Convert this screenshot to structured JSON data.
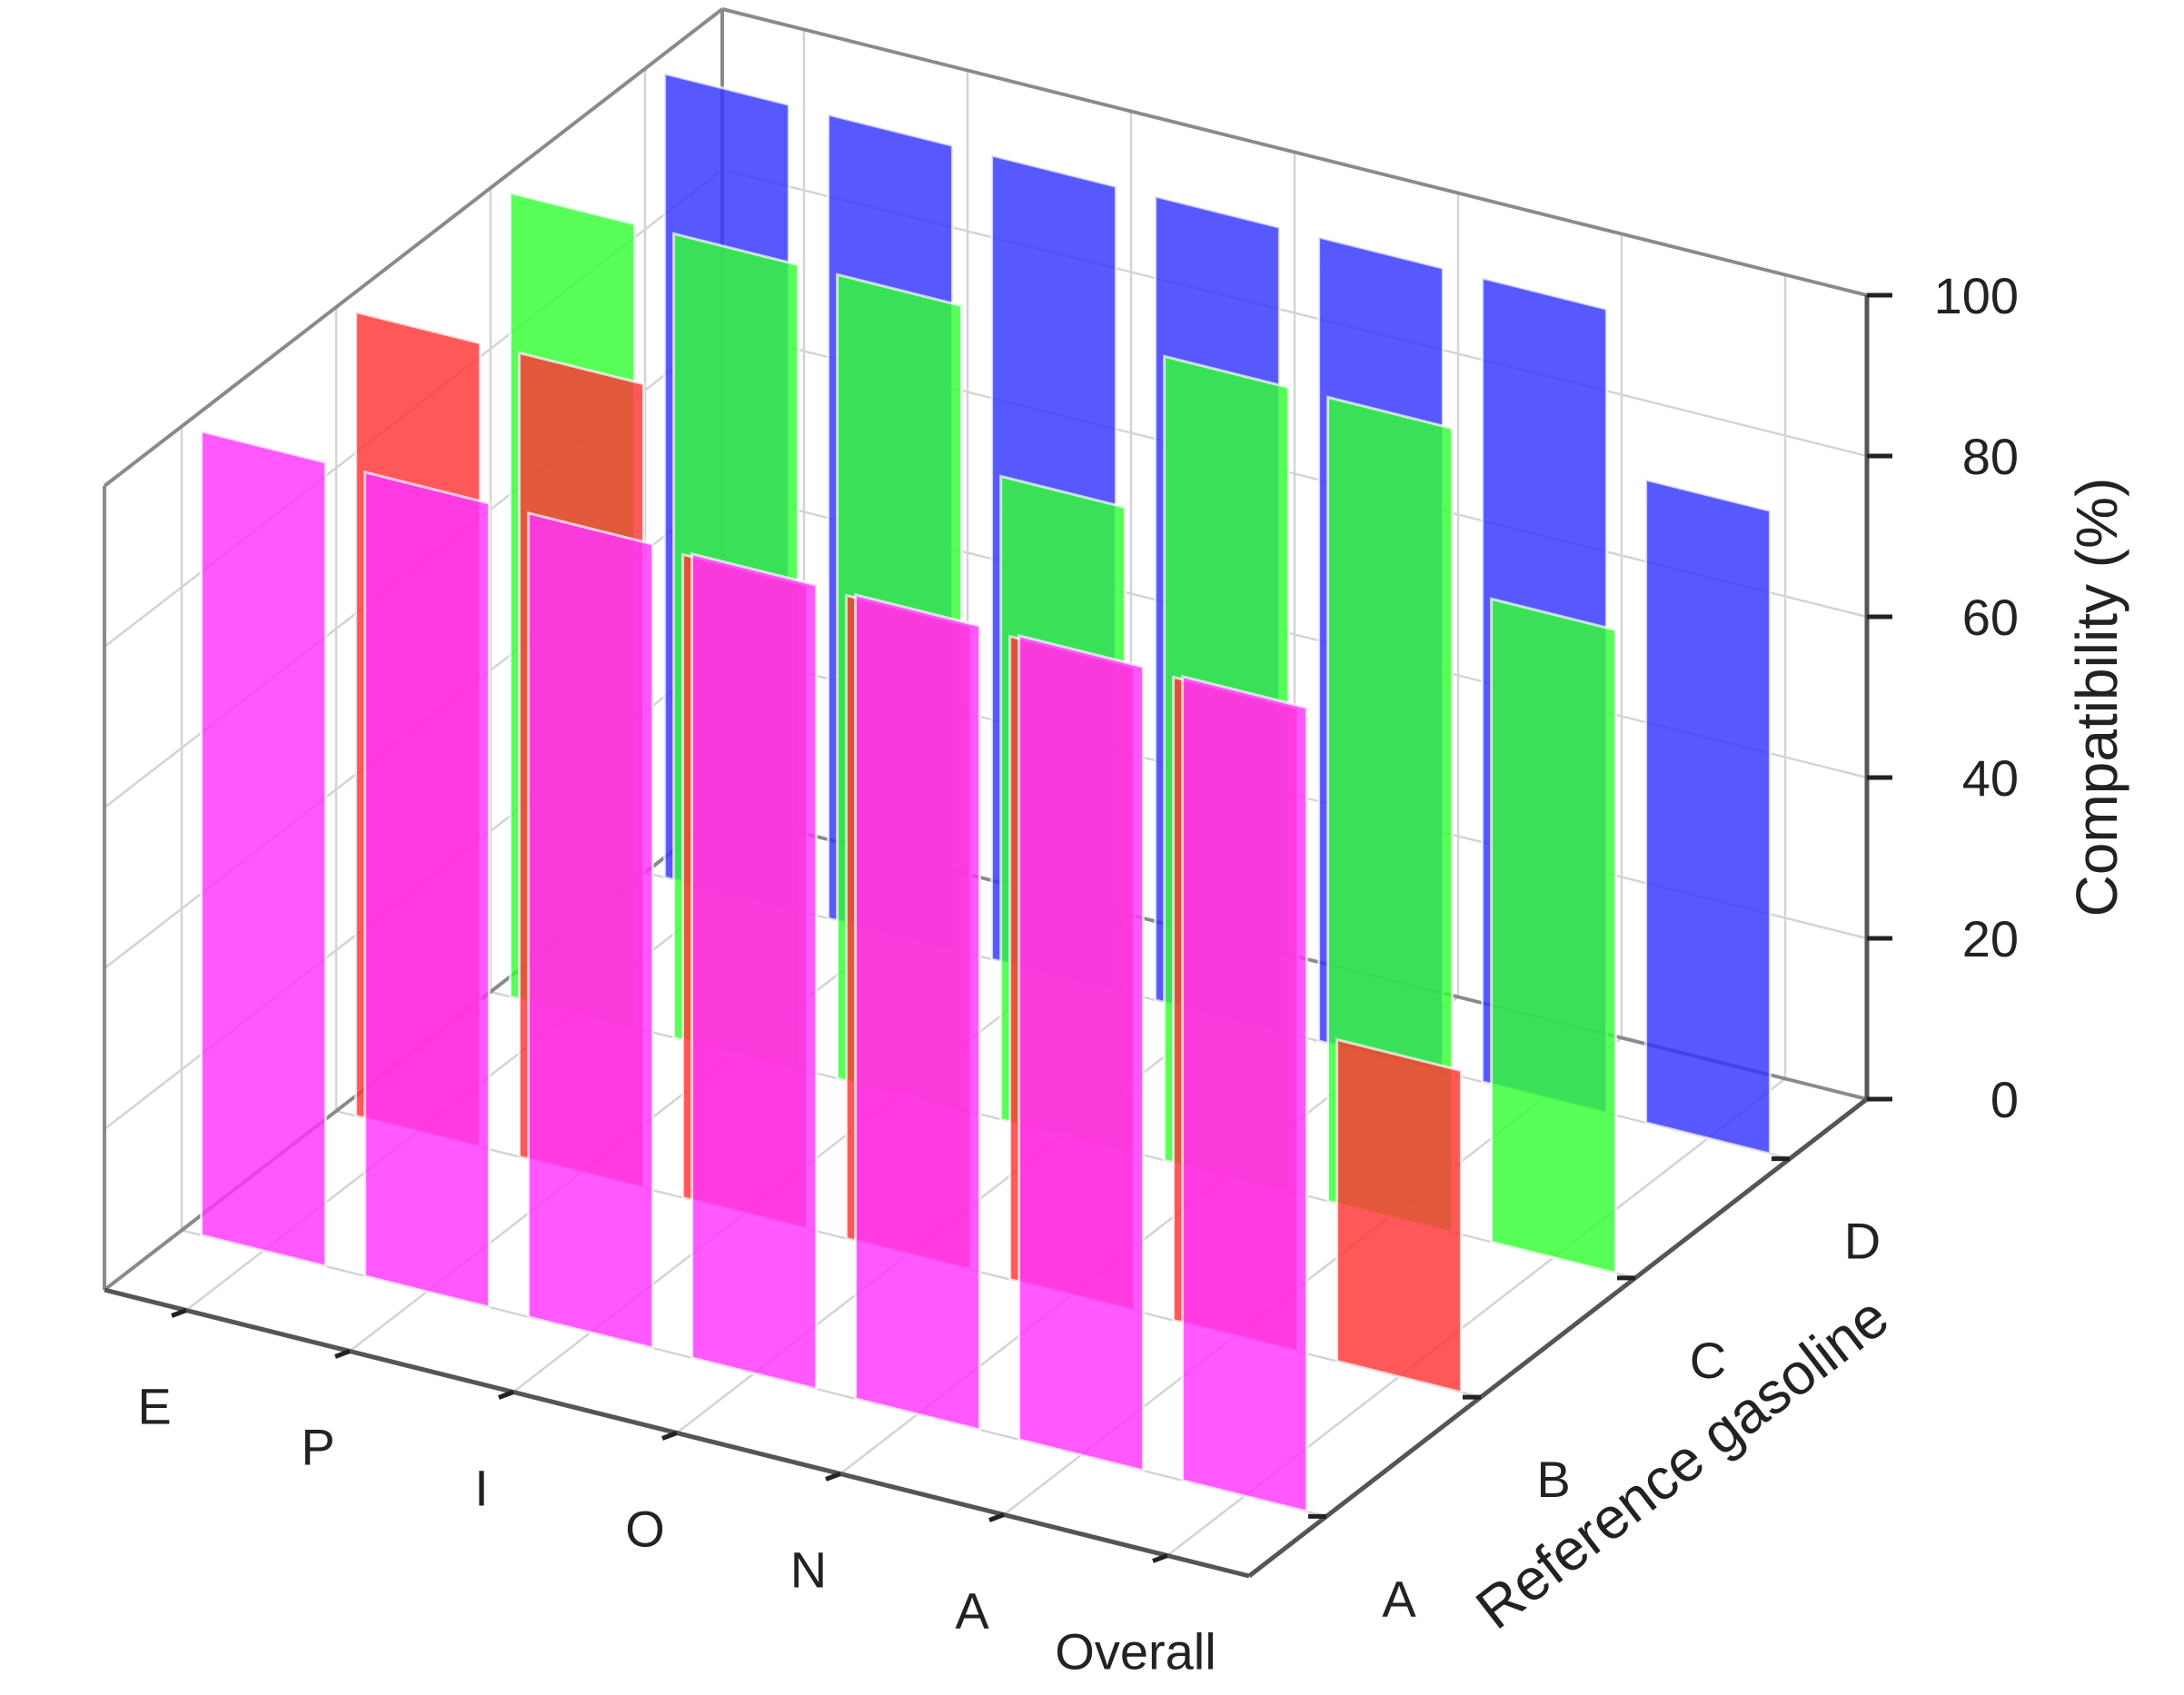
{
  "chart_data": {
    "type": "bar3d",
    "title": "",
    "x_axis": {
      "label": "",
      "categories": [
        "E",
        "P",
        "I",
        "O",
        "N",
        "A",
        "Overall"
      ]
    },
    "y_axis": {
      "label": "Reference gasoline",
      "categories": [
        "A",
        "B",
        "C",
        "D"
      ]
    },
    "z_axis": {
      "label": "Compatibility (%)",
      "range": [
        0,
        100
      ],
      "ticks": [
        "0",
        "20",
        "40",
        "60",
        "80",
        "100"
      ]
    },
    "series": [
      {
        "name": "A",
        "color": "#ff33ff",
        "values": [
          100,
          100,
          100,
          100,
          100,
          100,
          100
        ]
      },
      {
        "name": "B",
        "color": "#ff3333",
        "values": [
          100,
          100,
          80,
          80,
          80,
          80,
          40
        ]
      },
      {
        "name": "C",
        "color": "#33ff33",
        "values": [
          100,
          100,
          100,
          80,
          100,
          100,
          80
        ]
      },
      {
        "name": "D",
        "color": "#3333ff",
        "values": [
          100,
          100,
          100,
          100,
          100,
          100,
          80
        ]
      }
    ]
  }
}
